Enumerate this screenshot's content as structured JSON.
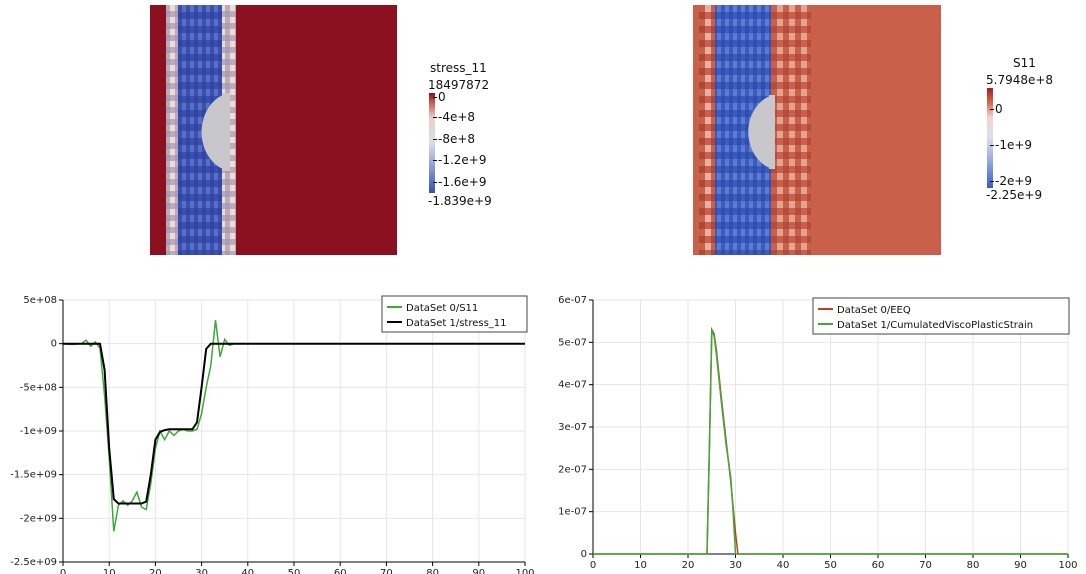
{
  "field_plots": [
    {
      "colorbar": {
        "title": "stress_11",
        "max_label": "18497872",
        "min_label": "-1.839e+9",
        "ticks": [
          "0",
          "-4e+8",
          "-8e+8",
          "-1.2e+9",
          "-1.6e+9"
        ]
      },
      "colors": {
        "positive": "#8b1020",
        "negative": "#3a4fb0",
        "neutral": "#c8c8cc"
      }
    },
    {
      "colorbar": {
        "title": "S11",
        "max_label": "5.7948e+8",
        "min_label": "-2.25e+9",
        "ticks": [
          "0",
          "-1e+9",
          "-2e+9"
        ]
      },
      "colors": {
        "positive": "#c8604a",
        "negative": "#3a5cc0",
        "neutral": "#c8c8cc"
      }
    }
  ],
  "chart_data": [
    {
      "type": "line",
      "xlim": [
        0,
        100
      ],
      "ylim": [
        -2500000000,
        500000000
      ],
      "x_ticks": [
        "0",
        "10",
        "20",
        "30",
        "40",
        "50",
        "60",
        "70",
        "80",
        "90",
        "100"
      ],
      "y_ticks": [
        "5e+08",
        "0",
        "-5e+08",
        "-1e+09",
        "-1.5e+09",
        "-2e+09",
        "-2.5e+09"
      ],
      "grid": true,
      "legend_position": "top-right",
      "series": [
        {
          "name": "DataSet 0/S11",
          "color": "#3fa83a",
          "x": [
            0,
            2,
            4,
            5,
            6,
            7,
            8,
            9,
            10,
            11,
            12,
            13,
            14,
            15,
            16,
            17,
            18,
            19,
            20,
            21,
            22,
            23,
            24,
            25,
            26,
            27,
            28,
            29,
            30,
            31,
            32,
            33,
            34,
            35,
            36,
            37,
            40,
            100
          ],
          "y": [
            0,
            -10000000,
            0,
            40000000,
            -30000000,
            20000000,
            -50000000,
            -600000000,
            -1300000000,
            -2150000000,
            -1850000000,
            -1800000000,
            -1850000000,
            -1800000000,
            -1700000000,
            -1870000000,
            -1900000000,
            -1600000000,
            -1200000000,
            -1000000000,
            -1100000000,
            -1000000000,
            -1050000000,
            -1000000000,
            -980000000,
            -1000000000,
            -1000000000,
            -980000000,
            -800000000,
            -500000000,
            -250000000,
            270000000,
            -150000000,
            50000000,
            -20000000,
            0,
            0,
            0
          ]
        },
        {
          "name": "DataSet 1/stress_11",
          "color": "#000000",
          "x": [
            0,
            8,
            9,
            10,
            11,
            12,
            13,
            14,
            15,
            16,
            17,
            18,
            19,
            20,
            21,
            22,
            23,
            24,
            25,
            26,
            27,
            28,
            29,
            30,
            31,
            32,
            33,
            100
          ],
          "y": [
            0,
            0,
            -300000000,
            -1200000000,
            -1780000000,
            -1830000000,
            -1830000000,
            -1830000000,
            -1830000000,
            -1830000000,
            -1830000000,
            -1810000000,
            -1500000000,
            -1100000000,
            -1010000000,
            -990000000,
            -980000000,
            -980000000,
            -980000000,
            -980000000,
            -980000000,
            -980000000,
            -900000000,
            -500000000,
            -60000000,
            0,
            0,
            0
          ]
        }
      ]
    },
    {
      "type": "line",
      "xlim": [
        0,
        100
      ],
      "ylim": [
        0,
        6e-07
      ],
      "x_ticks": [
        "0",
        "10",
        "20",
        "30",
        "40",
        "50",
        "60",
        "70",
        "80",
        "90",
        "100"
      ],
      "y_ticks": [
        "6e-07",
        "5e-07",
        "4e-07",
        "3e-07",
        "2e-07",
        "1e-07",
        "0"
      ],
      "grid": true,
      "legend_position": "top-right",
      "series": [
        {
          "name": "DataSet 0/EEQ",
          "color": "#c83c1e",
          "x": [
            0,
            24,
            24.5,
            25,
            25.5,
            26,
            27,
            28,
            29,
            30,
            30.5,
            31,
            100
          ],
          "y": [
            0,
            0,
            2.5e-07,
            5.3e-07,
            5.2e-07,
            4.8e-07,
            3.7e-07,
            2.7e-07,
            1.7e-07,
            5e-08,
            0,
            0,
            0
          ]
        },
        {
          "name": "DataSet 1/CumulatedViscoPlasticStrain",
          "color": "#3fa83a",
          "x": [
            0,
            24,
            24.5,
            25,
            25.5,
            26,
            27,
            28,
            29,
            29.5,
            30,
            100
          ],
          "y": [
            0,
            0,
            2.5e-07,
            5.3e-07,
            5.15e-07,
            4.7e-07,
            3.6e-07,
            2.6e-07,
            1.8e-07,
            1e-07,
            0,
            0
          ]
        }
      ]
    }
  ]
}
